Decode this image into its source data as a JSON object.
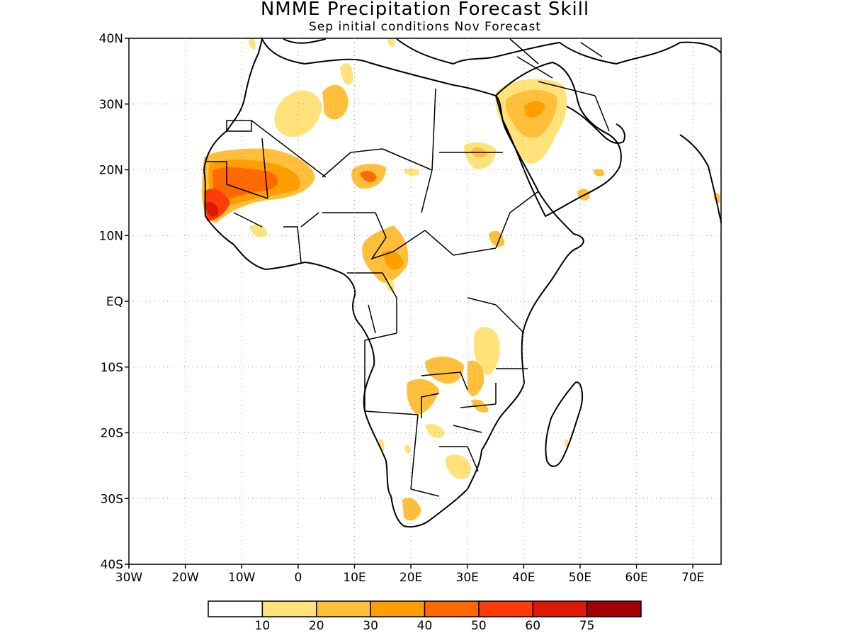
{
  "title": "NMME Precipitation Forecast Skill",
  "subtitle": "Sep initial conditions  Nov Forecast",
  "map": {
    "lon_range": [
      -30,
      75
    ],
    "lat_range": [
      -40,
      40
    ],
    "lon_ticks": [
      "30W",
      "20W",
      "10W",
      "0",
      "10E",
      "20E",
      "30E",
      "40E",
      "50E",
      "60E",
      "70E"
    ],
    "lat_ticks": [
      "40N",
      "30N",
      "20N",
      "10N",
      "EQ",
      "10S",
      "20S",
      "30S",
      "40S"
    ],
    "grid": true
  },
  "colorbar": {
    "labels": [
      "10",
      "20",
      "30",
      "40",
      "50",
      "60",
      "75"
    ],
    "colors": [
      "#ffffff",
      "#ffe27a",
      "#ffbf3a",
      "#ff9e00",
      "#ff6a00",
      "#ff3b0a",
      "#dd1a06",
      "#a00000"
    ]
  }
}
